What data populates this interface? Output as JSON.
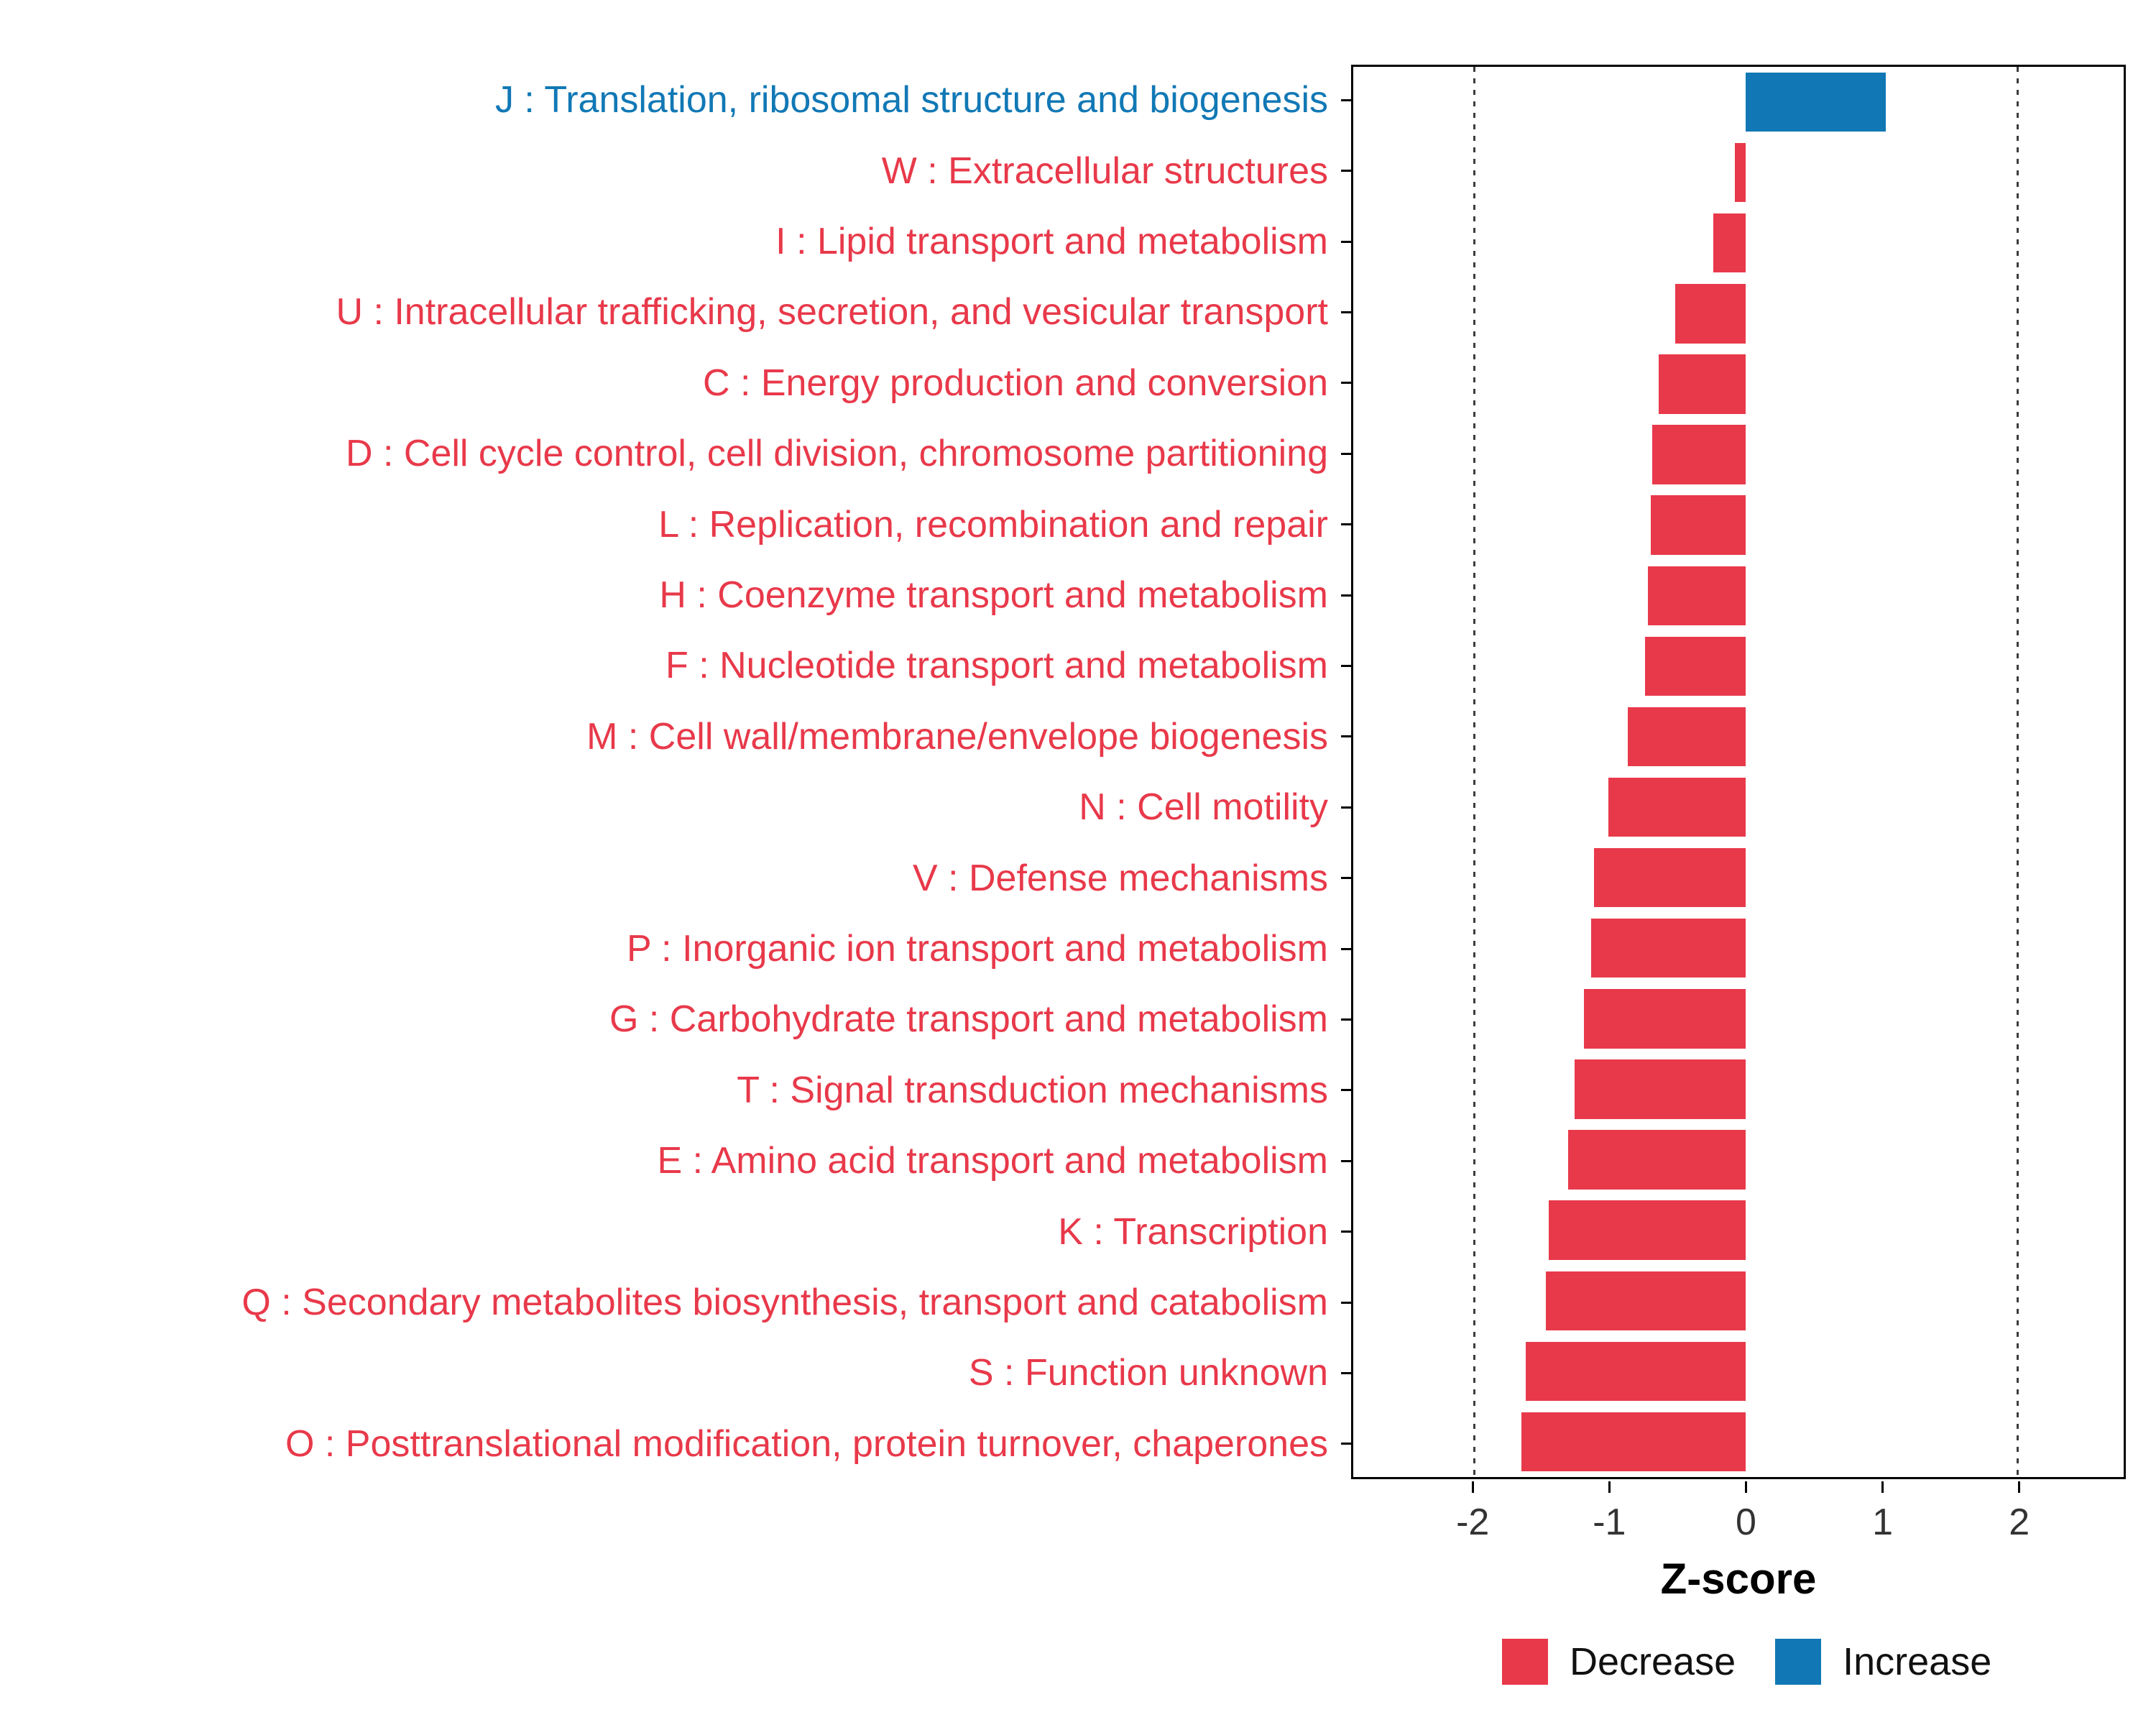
{
  "chart_data": {
    "type": "bar",
    "orientation": "horizontal",
    "title": "",
    "xlabel": "Z-score",
    "ylabel": "",
    "xlim": [
      -2.89,
      2.78
    ],
    "x_ticks": [
      "-2",
      "-1",
      "0",
      "1",
      "2"
    ],
    "x_tick_values": [
      -2,
      -1,
      0,
      1,
      2
    ],
    "reference_lines": [
      -2,
      2
    ],
    "reference_line_style": "dotted",
    "grid": "off",
    "legend_position": "bottom-right",
    "categories": [
      "J : Translation, ribosomal structure and biogenesis",
      "W : Extracellular structures",
      "I : Lipid transport and metabolism",
      "U : Intracellular trafficking, secretion, and vesicular transport",
      "C : Energy production and conversion",
      "D : Cell cycle control, cell division, chromosome partitioning",
      "L : Replication, recombination and repair",
      "H : Coenzyme transport and metabolism",
      "F : Nucleotide transport and metabolism",
      "M : Cell wall/membrane/envelope biogenesis",
      "N : Cell motility",
      "V : Defense mechanisms",
      "P : Inorganic ion transport and metabolism",
      "G : Carbohydrate transport and metabolism",
      "T : Signal transduction mechanisms",
      "E : Amino acid transport and metabolism",
      "K : Transcription",
      "Q : Secondary metabolites biosynthesis, transport and catabolism",
      "S : Function unknown",
      "O : Posttranslational modification, protein turnover, chaperones"
    ],
    "values": [
      1.03,
      -0.08,
      -0.24,
      -0.52,
      -0.64,
      -0.69,
      -0.7,
      -0.72,
      -0.74,
      -0.87,
      -1.01,
      -1.12,
      -1.14,
      -1.19,
      -1.26,
      -1.31,
      -1.45,
      -1.47,
      -1.62,
      -1.65
    ],
    "directions": [
      "Increase",
      "Decrease",
      "Decrease",
      "Decrease",
      "Decrease",
      "Decrease",
      "Decrease",
      "Decrease",
      "Decrease",
      "Decrease",
      "Decrease",
      "Decrease",
      "Decrease",
      "Decrease",
      "Decrease",
      "Decrease",
      "Decrease",
      "Decrease",
      "Decrease",
      "Decrease"
    ],
    "colors": {
      "Decrease": "#E8394A",
      "Increase": "#1178B5"
    },
    "legend": [
      {
        "label": "Decrease",
        "key": "Decrease"
      },
      {
        "label": "Increase",
        "key": "Increase"
      }
    ]
  }
}
